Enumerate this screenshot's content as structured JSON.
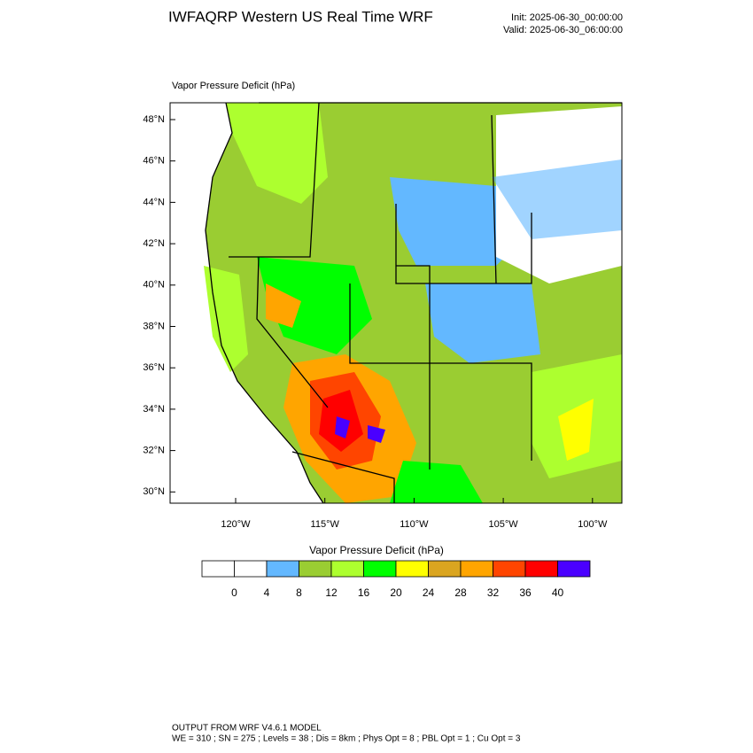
{
  "header": {
    "title": "IWFAQRP Western US Real Time WRF",
    "init": "Init: 2025-06-30_00:00:00",
    "valid": "Valid: 2025-06-30_06:00:00"
  },
  "map": {
    "subtitle": "Vapor Pressure Deficit   (hPa)",
    "lat_labels": [
      "48°N",
      "46°N",
      "44°N",
      "42°N",
      "40°N",
      "38°N",
      "36°N",
      "34°N",
      "32°N",
      "30°N"
    ],
    "lon_labels": [
      "120°W",
      "115°W",
      "110°W",
      "105°W",
      "100°W"
    ]
  },
  "colorbar": {
    "title": "Vapor Pressure Deficit  (hPa)",
    "colors": [
      "#ffffff",
      "#ffffff",
      "#63b8ff",
      "#9acd32",
      "#adff2f",
      "#00ff00",
      "#ffff00",
      "#daa520",
      "#ffa500",
      "#ff4500",
      "#ff0000",
      "#4a00ff"
    ],
    "ticks": [
      0,
      4,
      8,
      12,
      16,
      20,
      24,
      28,
      32,
      36,
      40
    ]
  },
  "footer": {
    "line1": "OUTPUT FROM WRF V4.6.1 MODEL",
    "line2": "WE = 310 ; SN = 275 ; Levels = 38 ; Dis = 8km ; Phys Opt = 8 ; PBL Opt = 1 ; Cu Opt = 3"
  }
}
